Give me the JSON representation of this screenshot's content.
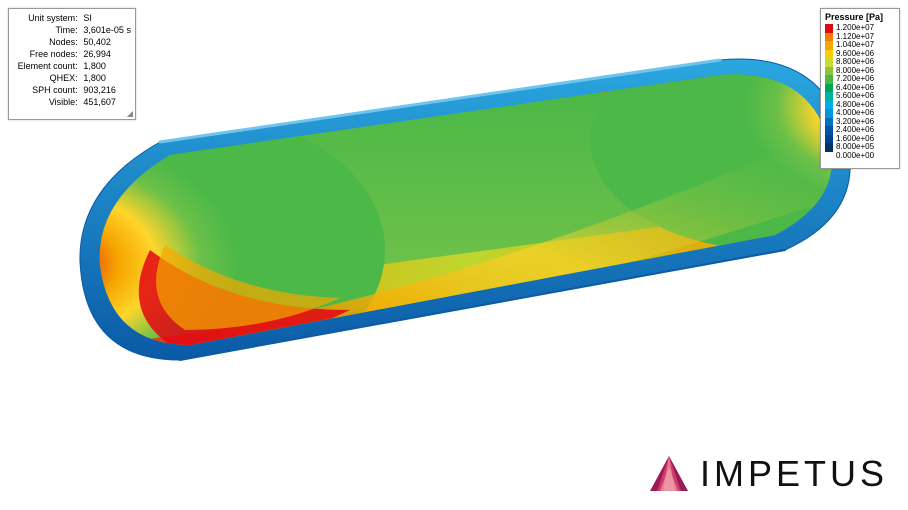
{
  "info": {
    "rows": [
      {
        "label": "Unit system:",
        "value": "SI"
      },
      {
        "label": "Time:",
        "value": "3,601e-05 s"
      },
      {
        "label": "Nodes:",
        "value": "50,402"
      },
      {
        "label": "Free nodes:",
        "value": "26,994"
      },
      {
        "label": "Element count:",
        "value": "1,800"
      },
      {
        "label": "QHEX:",
        "value": "1,800"
      },
      {
        "label": "SPH count:",
        "value": "903,216"
      },
      {
        "label": "Visible:",
        "value": "451,607"
      }
    ]
  },
  "legend": {
    "title": "Pressure [Pa]",
    "entries": [
      {
        "color": "#e30613",
        "label": "1.200e+07"
      },
      {
        "color": "#ee7f00",
        "label": "1.120e+07"
      },
      {
        "color": "#f6a800",
        "label": "1.040e+07"
      },
      {
        "color": "#ffcc00",
        "label": "9.600e+06"
      },
      {
        "color": "#cbdb2a",
        "label": "8.800e+06"
      },
      {
        "color": "#8bc53f",
        "label": "8.000e+06"
      },
      {
        "color": "#4cb848",
        "label": "7.200e+06"
      },
      {
        "color": "#00a651",
        "label": "6.400e+06"
      },
      {
        "color": "#00b3a0",
        "label": "5.600e+06"
      },
      {
        "color": "#00aeef",
        "label": "4.800e+06"
      },
      {
        "color": "#0095d9",
        "label": "4.000e+06"
      },
      {
        "color": "#0072bc",
        "label": "3.200e+06"
      },
      {
        "color": "#0054a6",
        "label": "2.400e+06"
      },
      {
        "color": "#004288",
        "label": "1.600e+06"
      },
      {
        "color": "#003366",
        "label": "8.000e+05"
      }
    ],
    "last_label": "0.000e+00"
  },
  "branding": {
    "name": "IMPETUS",
    "logo_colors": {
      "a": "#9a1b55",
      "b": "#d03a68",
      "c": "#e4768f",
      "d": "#f1a8b0"
    }
  },
  "viz": {
    "outline_color": "#0072bc",
    "rim_top": "#2aa7e0",
    "rim_bottom": "#0b5aa6",
    "note": "Pressure contour over capsule-shaped cross-section; high pressure (red) near rounded ends and lower rim, mid (green) across central span, low (cyan/blue) along top edge center.",
    "field_colors": {
      "red": "#e30613",
      "orange": "#f6a800",
      "yellow": "#ffd52b",
      "green": "#4cb848",
      "cyan": "#00b3a0",
      "blue": "#0095d9"
    }
  }
}
